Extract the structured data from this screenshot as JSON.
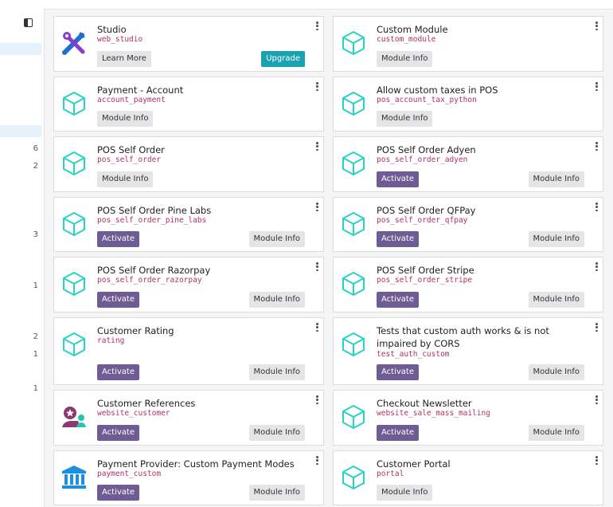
{
  "sidebar": {
    "counts": [
      "6",
      "2",
      "3",
      "1",
      "2",
      "1",
      "1"
    ]
  },
  "labels": {
    "module_info": "Module Info",
    "activate": "Activate",
    "learn_more": "Learn More",
    "upgrade": "Upgrade"
  },
  "apps": [
    {
      "name": "Studio",
      "technical": "web_studio",
      "icon": "studio-tools-icon"
    },
    {
      "name": "Custom Module",
      "technical": "custom_module",
      "icon": "module-cube-icon"
    },
    {
      "name": "Payment - Account",
      "technical": "account_payment",
      "icon": "module-cube-icon"
    },
    {
      "name": "Allow custom taxes in POS",
      "technical": "pos_account_tax_python",
      "icon": "module-cube-icon"
    },
    {
      "name": "POS Self Order",
      "technical": "pos_self_order",
      "icon": "module-cube-icon"
    },
    {
      "name": "POS Self Order Adyen",
      "technical": "pos_self_order_adyen",
      "icon": "module-cube-icon"
    },
    {
      "name": "POS Self Order Pine Labs",
      "technical": "pos_self_order_pine_labs",
      "icon": "module-cube-icon"
    },
    {
      "name": "POS Self Order QFPay",
      "technical": "pos_self_order_qfpay",
      "icon": "module-cube-icon"
    },
    {
      "name": "POS Self Order Razorpay",
      "technical": "pos_self_order_razorpay",
      "icon": "module-cube-icon"
    },
    {
      "name": "POS Self Order Stripe",
      "technical": "pos_self_order_stripe",
      "icon": "module-cube-icon"
    },
    {
      "name": "Customer Rating",
      "technical": "rating",
      "icon": "module-cube-icon"
    },
    {
      "name": "Tests that custom auth works & is not impaired by CORS",
      "technical": "test_auth_custom",
      "icon": "module-cube-icon"
    },
    {
      "name": "Customer References",
      "technical": "website_customer",
      "icon": "customer-references-icon"
    },
    {
      "name": "Checkout Newsletter",
      "technical": "website_sale_mass_mailing",
      "icon": "module-cube-icon"
    },
    {
      "name": "Payment Provider: Custom Payment Modes",
      "technical": "payment_custom",
      "icon": "payment-provider-bank-icon"
    },
    {
      "name": "Customer Portal",
      "technical": "portal",
      "icon": "module-cube-icon"
    }
  ]
}
